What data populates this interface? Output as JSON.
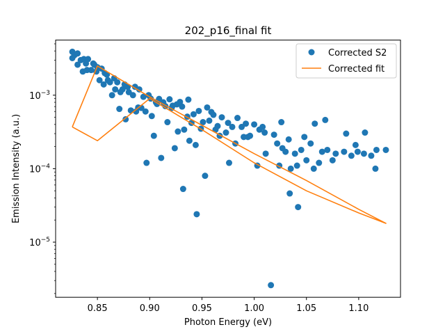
{
  "chart_data": {
    "type": "scatter",
    "title": "202_p16_final fit",
    "xlabel": "Photon Energy (eV)",
    "ylabel": "Emission Intensity (a.u.)",
    "xlim": [
      0.81,
      1.14
    ],
    "ylim_log10": [
      -5.75,
      -2.25
    ],
    "y_scale": "log",
    "x_ticks": [
      {
        "value": 0.85,
        "label": "0.85"
      },
      {
        "value": 0.9,
        "label": "0.90"
      },
      {
        "value": 0.95,
        "label": "0.95"
      },
      {
        "value": 1.0,
        "label": "1.00"
      },
      {
        "value": 1.05,
        "label": "1.05"
      },
      {
        "value": 1.1,
        "label": "1.10"
      }
    ],
    "y_ticks": [
      {
        "value": 0.001,
        "base": "10",
        "exp": "−3"
      },
      {
        "value": 0.0001,
        "base": "10",
        "exp": "−4"
      },
      {
        "value": 1e-05,
        "base": "10",
        "exp": "−5"
      }
    ],
    "grid": false,
    "legend_position": "top-right",
    "series": [
      {
        "name": "Corrected S2",
        "kind": "scatter",
        "color": "#1f77b4",
        "points": [
          [
            0.826,
            0.0039
          ],
          [
            0.826,
            0.0032
          ],
          [
            0.828,
            0.0035
          ],
          [
            0.831,
            0.0037
          ],
          [
            0.831,
            0.0026
          ],
          [
            0.834,
            0.003
          ],
          [
            0.836,
            0.0021
          ],
          [
            0.837,
            0.0031
          ],
          [
            0.839,
            0.0027
          ],
          [
            0.84,
            0.0022
          ],
          [
            0.841,
            0.0031
          ],
          [
            0.844,
            0.0022
          ],
          [
            0.846,
            0.0027
          ],
          [
            0.847,
            0.0026
          ],
          [
            0.849,
            0.0021
          ],
          [
            0.85,
            0.0024
          ],
          [
            0.852,
            0.0016
          ],
          [
            0.854,
            0.0023
          ],
          [
            0.856,
            0.0014
          ],
          [
            0.857,
            0.002
          ],
          [
            0.859,
            0.0019
          ],
          [
            0.86,
            0.0016
          ],
          [
            0.862,
            0.0015
          ],
          [
            0.864,
            0.001
          ],
          [
            0.866,
            0.0017
          ],
          [
            0.867,
            0.0012
          ],
          [
            0.869,
            0.0015
          ],
          [
            0.871,
            0.00065
          ],
          [
            0.872,
            0.0011
          ],
          [
            0.874,
            0.0012
          ],
          [
            0.876,
            0.0014
          ],
          [
            0.877,
            0.00047
          ],
          [
            0.879,
            0.0013
          ],
          [
            0.88,
            0.0011
          ],
          [
            0.882,
            0.00062
          ],
          [
            0.884,
            0.001
          ],
          [
            0.886,
            0.0013
          ],
          [
            0.887,
            0.0006
          ],
          [
            0.889,
            0.00068
          ],
          [
            0.89,
            0.0012
          ],
          [
            0.892,
            0.00067
          ],
          [
            0.894,
            0.00095
          ],
          [
            0.896,
            0.0006
          ],
          [
            0.897,
            0.00012
          ],
          [
            0.899,
            0.001
          ],
          [
            0.901,
            0.0009
          ],
          [
            0.902,
            0.00052
          ],
          [
            0.904,
            0.00028
          ],
          [
            0.906,
            0.0008
          ],
          [
            0.907,
            0.00076
          ],
          [
            0.909,
            0.00089
          ],
          [
            0.911,
            0.00014
          ],
          [
            0.913,
            0.0008
          ],
          [
            0.915,
            0.00071
          ],
          [
            0.917,
            0.00043
          ],
          [
            0.919,
            0.00088
          ],
          [
            0.921,
            0.00067
          ],
          [
            0.922,
            0.00072
          ],
          [
            0.924,
            0.00019
          ],
          [
            0.926,
            0.00075
          ],
          [
            0.927,
            0.00032
          ],
          [
            0.929,
            0.00081
          ],
          [
            0.931,
            0.0007
          ],
          [
            0.932,
            5.3e-05
          ],
          [
            0.933,
            0.00034
          ],
          [
            0.936,
            0.00051
          ],
          [
            0.937,
            0.00087
          ],
          [
            0.938,
            0.00024
          ],
          [
            0.94,
            0.00042
          ],
          [
            0.942,
            0.00055
          ],
          [
            0.944,
            0.00021
          ],
          [
            0.945,
            2.4e-05
          ],
          [
            0.947,
            0.00061
          ],
          [
            0.949,
            0.00035
          ],
          [
            0.951,
            0.00043
          ],
          [
            0.953,
            8e-05
          ],
          [
            0.955,
            0.00068
          ],
          [
            0.957,
            0.00045
          ],
          [
            0.959,
            0.00059
          ],
          [
            0.961,
            0.00054
          ],
          [
            0.963,
            0.00034
          ],
          [
            0.965,
            0.00038
          ],
          [
            0.967,
            0.00028
          ],
          [
            0.969,
            0.0005
          ],
          [
            0.973,
            0.00031
          ],
          [
            0.975,
            0.00042
          ],
          [
            0.976,
            0.00012
          ],
          [
            0.979,
            0.00037
          ],
          [
            0.982,
            0.00022
          ],
          [
            0.984,
            0.00049
          ],
          [
            0.988,
            0.00037
          ],
          [
            0.99,
            0.00027
          ],
          [
            0.992,
            0.00041
          ],
          [
            0.994,
            0.00027
          ],
          [
            0.996,
            0.00028
          ],
          [
            1.0,
            0.0004
          ],
          [
            1.003,
            0.00011
          ],
          [
            1.005,
            0.00034
          ],
          [
            1.008,
            0.00037
          ],
          [
            1.01,
            0.00031
          ],
          [
            1.011,
            0.00016
          ],
          [
            1.016,
            2.6e-06
          ],
          [
            1.019,
            0.00029
          ],
          [
            1.022,
            0.00022
          ],
          [
            1.024,
            0.00011
          ],
          [
            1.026,
            0.00043
          ],
          [
            1.027,
            0.00019
          ],
          [
            1.03,
            0.00017
          ],
          [
            1.033,
            0.00025
          ],
          [
            1.034,
            4.6e-05
          ],
          [
            1.035,
            0.0001
          ],
          [
            1.039,
            0.00016
          ],
          [
            1.041,
            0.00011
          ],
          [
            1.042,
            3e-05
          ],
          [
            1.045,
            0.00018
          ],
          [
            1.048,
            0.00027
          ],
          [
            1.05,
            0.00013
          ],
          [
            1.054,
            0.00022
          ],
          [
            1.057,
            0.0001
          ],
          [
            1.058,
            0.00041
          ],
          [
            1.062,
            0.00012
          ],
          [
            1.065,
            0.00017
          ],
          [
            1.068,
            0.00046
          ],
          [
            1.07,
            0.00018
          ],
          [
            1.075,
            0.00013
          ],
          [
            1.078,
            0.00016
          ],
          [
            1.086,
            0.00017
          ],
          [
            1.088,
            0.0003
          ],
          [
            1.093,
            0.00015
          ],
          [
            1.097,
            0.00021
          ],
          [
            1.099,
            0.00017
          ],
          [
            1.105,
            0.00016
          ],
          [
            1.106,
            0.00031
          ],
          [
            1.112,
            0.00015
          ],
          [
            1.116,
            0.0001
          ],
          [
            1.117,
            0.00018
          ],
          [
            1.126,
            0.00018
          ]
        ]
      },
      {
        "name": "Corrected fit",
        "kind": "line",
        "color": "#ff7f0e",
        "points": [
          [
            0.826,
            0.00037
          ],
          [
            0.85,
            0.00024
          ],
          [
            0.9,
            0.0009
          ],
          [
            0.95,
            0.00034
          ],
          [
            1.0,
            0.00012
          ],
          [
            1.05,
            5e-05
          ],
          [
            1.1,
            2.5e-05
          ],
          [
            1.126,
            1.8e-05
          ],
          [
            1.1,
            2.8e-05
          ],
          [
            1.05,
            6.9e-05
          ],
          [
            1.0,
            0.00016
          ],
          [
            0.95,
            0.00039
          ],
          [
            0.9,
            0.00095
          ],
          [
            0.85,
            0.0025
          ],
          [
            0.826,
            0.00037
          ]
        ]
      }
    ]
  }
}
